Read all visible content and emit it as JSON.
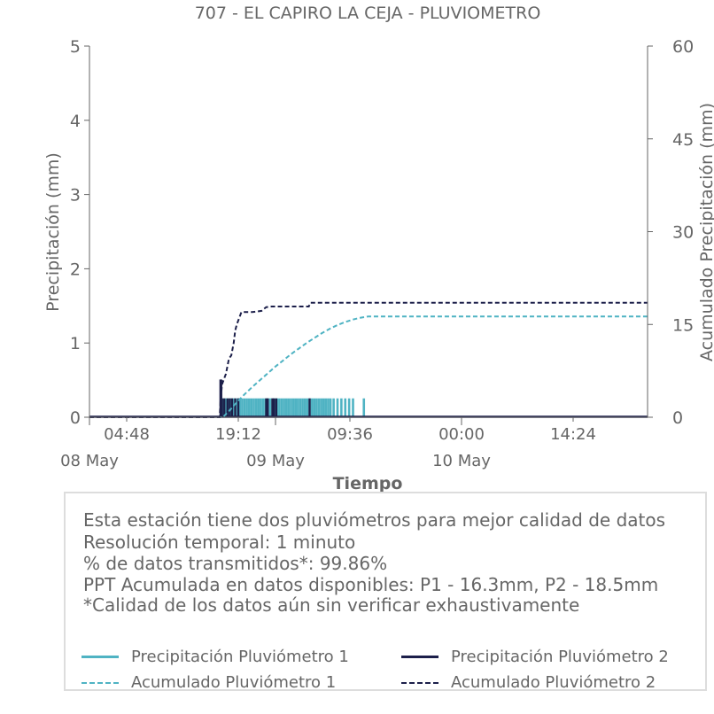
{
  "chart_data": {
    "type": "bar+line",
    "title": "707 - EL CAPIRO LA CEJA - PLUVIOMETRO",
    "xlabel": "Tiempo",
    "ylabel_left": "Precipitación (mm)",
    "ylabel_right": "Acumulado Precipitación (mm)",
    "ylim_left": [
      0,
      5
    ],
    "ylim_right": [
      0,
      60
    ],
    "yticks_left": [
      0,
      1,
      2,
      3,
      4,
      5
    ],
    "yticks_right": [
      0,
      15,
      30,
      45,
      60
    ],
    "xlim_hours": [
      0,
      72
    ],
    "x_time_ticks": [
      {
        "hour": 4.8,
        "label": "04:48"
      },
      {
        "hour": 19.2,
        "label": "19:12"
      },
      {
        "hour": 33.6,
        "label": "09:36"
      },
      {
        "hour": 48,
        "label": "00:00"
      },
      {
        "hour": 62.4,
        "label": "14:24"
      }
    ],
    "x_date_ticks": [
      {
        "hour": 0,
        "label": "08 May"
      },
      {
        "hour": 24,
        "label": "09 May"
      },
      {
        "hour": 48,
        "label": "10 May"
      }
    ],
    "colors": {
      "p1": "#4fb3c3",
      "p2": "#1c1f4a"
    },
    "series": [
      {
        "name": "Precipitación Pluviómetro 1",
        "kind": "bar",
        "times": [
          17.3,
          17.6,
          17.9,
          18.2,
          18.5,
          18.8,
          19.1,
          19.4,
          19.7,
          20.0,
          20.3,
          20.6,
          20.9,
          21.2,
          21.5,
          21.8,
          22.1,
          22.4,
          22.7,
          23.0,
          23.3,
          23.6,
          23.9,
          24.2,
          24.5,
          24.8,
          25.1,
          25.4,
          25.7,
          26.0,
          26.3,
          26.6,
          26.9,
          27.2,
          27.5,
          27.8,
          28.1,
          28.4,
          28.7,
          29.0,
          29.3,
          29.6,
          29.9,
          30.2,
          30.5,
          30.8,
          31.1,
          31.5,
          32.0,
          32.5,
          33.0,
          33.5,
          34.0,
          35.4
        ],
        "values": [
          0.254,
          0.254,
          0.254,
          0.254,
          0.254,
          0.254,
          0.254,
          0.254,
          0.254,
          0.254,
          0.254,
          0.254,
          0.254,
          0.254,
          0.254,
          0.254,
          0.254,
          0.254,
          0.254,
          0.254,
          0.254,
          0.254,
          0.254,
          0.254,
          0.254,
          0.254,
          0.254,
          0.254,
          0.254,
          0.254,
          0.254,
          0.254,
          0.254,
          0.254,
          0.254,
          0.254,
          0.254,
          0.254,
          0.254,
          0.254,
          0.254,
          0.254,
          0.254,
          0.254,
          0.254,
          0.254,
          0.254,
          0.254,
          0.254,
          0.254,
          0.254,
          0.254,
          0.254,
          0.254
        ]
      },
      {
        "name": "Precipitación Pluviómetro 2",
        "kind": "bar",
        "times": [
          16.9,
          17.0,
          17.1,
          17.4,
          17.8,
          18.1,
          18.4,
          18.8,
          19.2,
          22.8,
          23.0,
          23.6,
          23.8,
          24.1,
          28.4
        ],
        "values": [
          0.508,
          0.508,
          0.254,
          0.254,
          0.254,
          0.254,
          0.254,
          0.254,
          0.254,
          0.254,
          0.254,
          0.254,
          0.254,
          0.254,
          0.254
        ]
      },
      {
        "name": "Acumulado Pluviómetro 1",
        "kind": "line-dashed",
        "x": [
          0,
          17.2,
          18,
          19,
          20,
          21,
          22,
          23,
          24,
          25,
          26,
          27,
          28,
          29,
          30,
          31,
          32,
          33,
          34,
          35,
          36,
          72
        ],
        "y": [
          0,
          0,
          1.0,
          2.4,
          3.7,
          4.9,
          6.0,
          7.1,
          8.2,
          9.2,
          10.2,
          11.1,
          12.0,
          12.8,
          13.6,
          14.3,
          14.9,
          15.4,
          15.8,
          16.1,
          16.3,
          16.3
        ]
      },
      {
        "name": "Acumulado Pluviómetro 2",
        "kind": "line-dashed",
        "x": [
          0,
          16.8,
          16.9,
          17.1,
          17.3,
          17.6,
          18.0,
          18.3,
          18.6,
          18.8,
          19.0,
          19.3,
          19.6,
          20.0,
          21.0,
          22.2,
          22.8,
          23.5,
          24.0,
          25.0,
          28.3,
          28.5,
          72
        ],
        "y": [
          0,
          0,
          2.5,
          5.3,
          6.0,
          7.0,
          9.5,
          10.0,
          12.0,
          14.0,
          15.0,
          16.0,
          17.0,
          17.0,
          17.0,
          17.2,
          17.8,
          17.9,
          17.9,
          17.9,
          17.9,
          18.5,
          18.5
        ]
      }
    ]
  },
  "info": {
    "line1": "Esta estación tiene dos pluviómetros para mejor calidad de datos",
    "line2": "Resolución temporal: 1 minuto",
    "line3": "% de datos transmitidos*: 99.86%",
    "line4": "PPT Acumulada en datos disponibles: P1 - 16.3mm, P2 - 18.5mm",
    "line5": "*Calidad de los datos aún sin verificar exhaustivamente"
  },
  "legend": {
    "p1_bar": "Precipitación Pluviómetro 1",
    "p2_bar": "Precipitación Pluviómetro 2",
    "p1_acc": "Acumulado Pluviómetro 1",
    "p2_acc": "Acumulado Pluviómetro 2"
  }
}
